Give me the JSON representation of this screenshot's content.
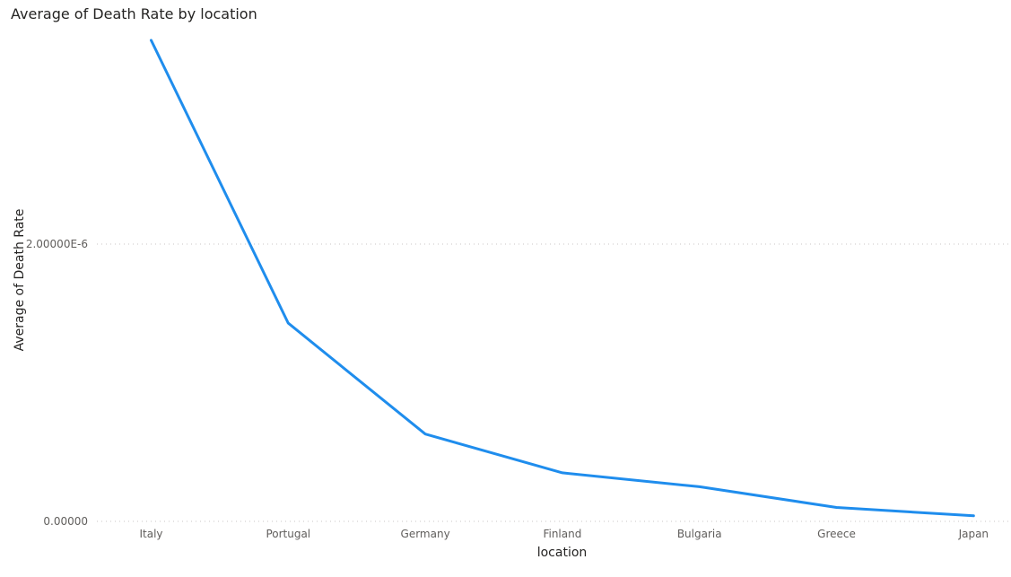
{
  "chart_data": {
    "type": "line",
    "title": "Average of Death Rate by location",
    "xlabel": "location",
    "ylabel": "Average of Death Rate",
    "categories": [
      "Italy",
      "Portugal",
      "Germany",
      "Finland",
      "Bulgaria",
      "Greece",
      "Japan"
    ],
    "series": [
      {
        "values": [
          3.47e-06,
          1.43e-06,
          6.3e-07,
          3.5e-07,
          2.5e-07,
          1e-07,
          4e-08
        ]
      }
    ],
    "ylim": [
      0,
      3.5e-06
    ],
    "yticks": [
      {
        "value": 0,
        "label": "0.00000"
      },
      {
        "value": 2e-06,
        "label": "2.00000E-6"
      }
    ],
    "grid": true,
    "legend": "none",
    "line_color": "#1f8ded",
    "grid_color": "#c8c6c4"
  }
}
